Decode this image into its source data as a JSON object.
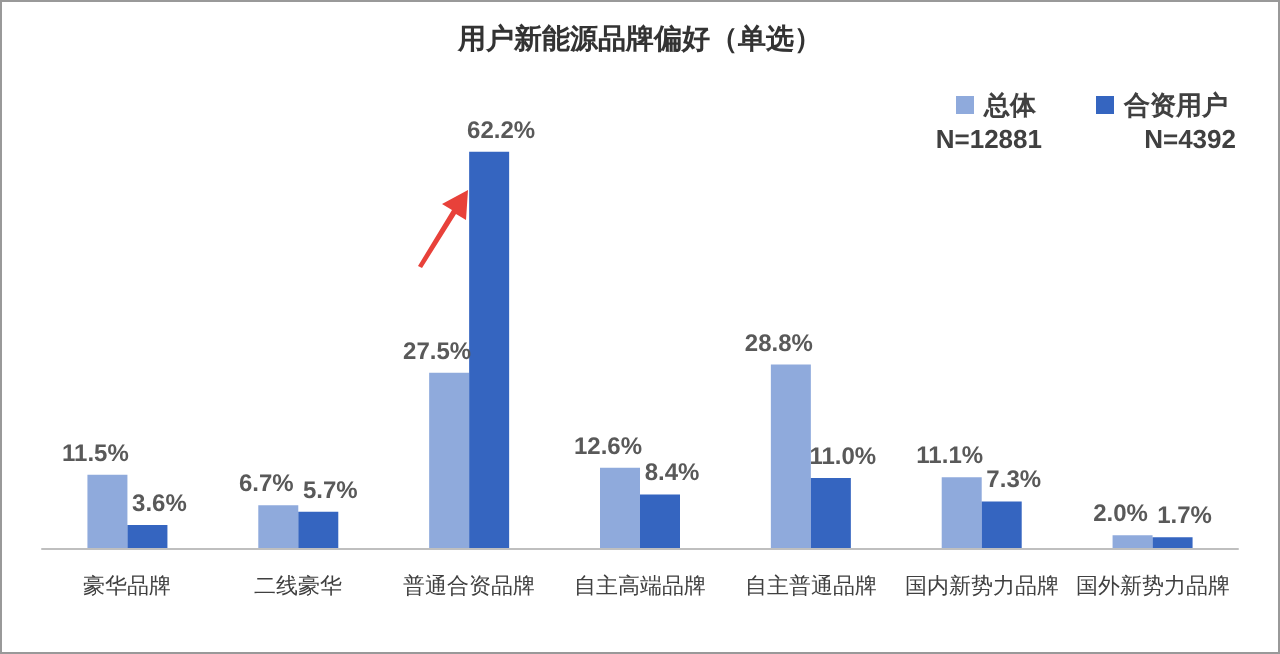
{
  "chart_data": {
    "type": "bar",
    "title": "用户新能源品牌偏好（单选）",
    "categories": [
      "豪华品牌",
      "二线豪华",
      "普通合资品牌",
      "自主高端品牌",
      "自主普通品牌",
      "国内新势力品牌",
      "国外新势力品牌"
    ],
    "series": [
      {
        "name": "总体",
        "color": "#8faadc",
        "values": [
          11.5,
          6.7,
          27.5,
          12.6,
          28.8,
          11.1,
          2.0
        ],
        "value_labels": [
          "11.5%",
          "6.7%",
          "27.5%",
          "12.6%",
          "28.8%",
          "11.1%",
          "2.0%"
        ]
      },
      {
        "name": "合资用户",
        "color": "#3565c0",
        "values": [
          3.6,
          5.7,
          62.2,
          8.4,
          11.0,
          7.3,
          1.7
        ],
        "value_labels": [
          "3.6%",
          "5.7%",
          "62.2%",
          "8.4%",
          "11.0%",
          "7.3%",
          "1.7%"
        ]
      }
    ],
    "annotations": [
      "N=12881",
      "N=4392"
    ],
    "legend": "top right"
  }
}
